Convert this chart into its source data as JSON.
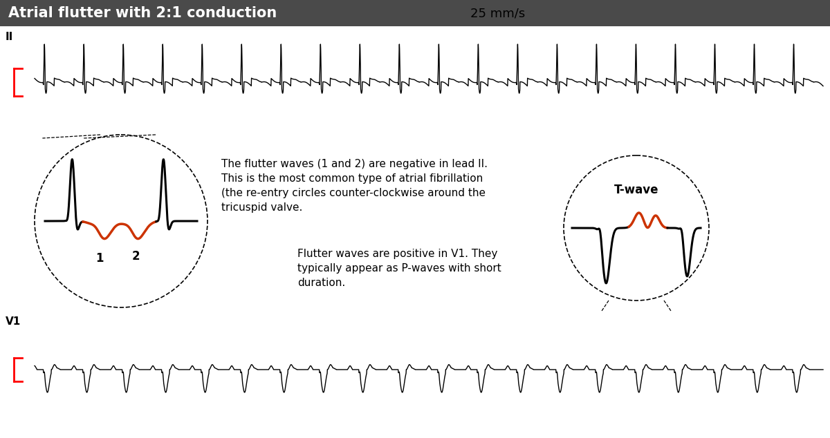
{
  "title": "Atrial flutter with 2:1 conduction",
  "speed_label": "25 mm/s",
  "title_bg": "#4a4a4a",
  "title_fg": "#ffffff",
  "ecg_color": "#000000",
  "red_color": "#cc3300",
  "lead_II_label": "II",
  "lead_V1_label": "V1",
  "annotation_text_1": "The flutter waves (1 and 2) are negative in lead II.\nThis is the most common type of atrial fibrillation\n(the re-entry circles counter-clockwise around the\ntricuspid valve.",
  "annotation_text_2": "Flutter waves are positive in V1. They\ntypically appear as P-waves with short\nduration.",
  "twave_label": "T-wave"
}
